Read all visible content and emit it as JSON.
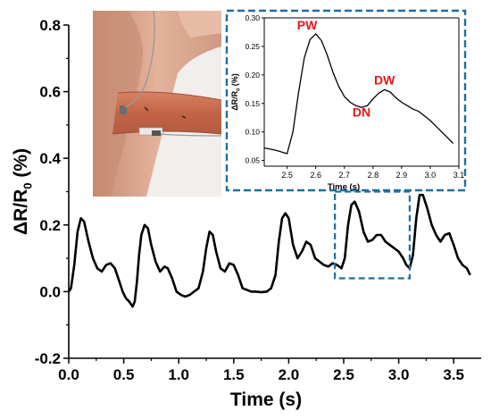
{
  "chart_data": [
    {
      "type": "line",
      "ylabel": "ΔR/R0 (%)",
      "xlabel": "Time (s)",
      "xlim": [
        0.0,
        3.75
      ],
      "ylim": [
        -0.2,
        0.8
      ],
      "xticks": [
        "0.0",
        "0.5",
        "1.0",
        "1.5",
        "2.0",
        "2.5",
        "3.0",
        "3.5"
      ],
      "yticks": [
        "-0.2",
        "0.0",
        "0.2",
        "0.4",
        "0.6",
        "0.8"
      ],
      "grid": false,
      "series": [
        {
          "color": "#000000",
          "x": [
            0.0,
            0.02,
            0.05,
            0.08,
            0.11,
            0.14,
            0.18,
            0.22,
            0.26,
            0.3,
            0.34,
            0.38,
            0.42,
            0.46,
            0.49,
            0.52,
            0.55,
            0.58,
            0.6,
            0.62,
            0.64,
            0.66,
            0.69,
            0.72,
            0.75,
            0.79,
            0.83,
            0.87,
            0.9,
            0.94,
            0.98,
            1.02,
            1.06,
            1.1,
            1.14,
            1.18,
            1.22,
            1.25,
            1.28,
            1.31,
            1.34,
            1.38,
            1.42,
            1.46,
            1.5,
            1.54,
            1.58,
            1.62,
            1.66,
            1.7,
            1.75,
            1.8,
            1.84,
            1.88,
            1.91,
            1.94,
            1.97,
            2.0,
            2.04,
            2.08,
            2.12,
            2.16,
            2.2,
            2.24,
            2.28,
            2.32,
            2.36,
            2.4,
            2.44,
            2.48,
            2.51,
            2.54,
            2.57,
            2.6,
            2.64,
            2.68,
            2.72,
            2.76,
            2.8,
            2.84,
            2.88,
            2.92,
            2.96,
            3.0,
            3.04,
            3.07,
            3.1,
            3.13,
            3.16,
            3.19,
            3.22,
            3.26,
            3.3,
            3.34,
            3.38,
            3.42,
            3.46,
            3.5,
            3.54,
            3.58,
            3.62,
            3.65
          ],
          "y": [
            0.0,
            0.01,
            0.08,
            0.18,
            0.22,
            0.21,
            0.15,
            0.1,
            0.07,
            0.06,
            0.08,
            0.085,
            0.07,
            0.03,
            0.0,
            -0.02,
            -0.03,
            -0.045,
            -0.03,
            0.03,
            0.11,
            0.17,
            0.2,
            0.19,
            0.14,
            0.09,
            0.06,
            0.075,
            0.07,
            0.04,
            0.0,
            -0.01,
            -0.015,
            -0.01,
            0.0,
            0.01,
            0.06,
            0.13,
            0.18,
            0.17,
            0.12,
            0.07,
            0.06,
            0.085,
            0.08,
            0.05,
            0.01,
            0.005,
            0.0,
            0.0,
            -0.002,
            0.0,
            0.01,
            0.05,
            0.15,
            0.22,
            0.235,
            0.22,
            0.14,
            0.1,
            0.12,
            0.15,
            0.14,
            0.1,
            0.09,
            0.08,
            0.075,
            0.085,
            0.08,
            0.07,
            0.1,
            0.2,
            0.26,
            0.27,
            0.24,
            0.18,
            0.15,
            0.155,
            0.17,
            0.17,
            0.15,
            0.14,
            0.13,
            0.12,
            0.1,
            0.08,
            0.07,
            0.11,
            0.22,
            0.29,
            0.29,
            0.25,
            0.2,
            0.17,
            0.15,
            0.17,
            0.175,
            0.14,
            0.1,
            0.08,
            0.07,
            0.05
          ]
        }
      ]
    },
    {
      "type": "line",
      "ylabel": "ΔR/R0 (%)",
      "xlabel": "Time (s)",
      "xlim": [
        2.42,
        3.1
      ],
      "ylim": [
        0.04,
        0.3
      ],
      "xticks": [
        "2.5",
        "2.6",
        "2.7",
        "2.8",
        "2.9",
        "3.0",
        "3.1"
      ],
      "yticks": [
        "0.05",
        "0.10",
        "0.15",
        "0.20",
        "0.25",
        "0.30"
      ],
      "annotations": [
        {
          "text": "PW",
          "x": 2.57,
          "y": 0.28
        },
        {
          "text": "DN",
          "x": 2.76,
          "y": 0.127
        },
        {
          "text": "DW",
          "x": 2.84,
          "y": 0.183
        }
      ],
      "annotation_color": "#e8151b",
      "frame_color": "#1e6fa0",
      "series": [
        {
          "color": "#000000",
          "x": [
            2.42,
            2.46,
            2.5,
            2.52,
            2.54,
            2.56,
            2.58,
            2.6,
            2.62,
            2.64,
            2.66,
            2.68,
            2.7,
            2.72,
            2.74,
            2.76,
            2.78,
            2.8,
            2.82,
            2.84,
            2.86,
            2.88,
            2.9,
            2.92,
            2.94,
            2.96,
            2.98,
            3.0,
            3.02,
            3.04,
            3.06,
            3.08
          ],
          "y": [
            0.072,
            0.068,
            0.062,
            0.1,
            0.17,
            0.23,
            0.262,
            0.272,
            0.26,
            0.235,
            0.205,
            0.18,
            0.162,
            0.152,
            0.146,
            0.143,
            0.146,
            0.158,
            0.168,
            0.174,
            0.17,
            0.16,
            0.152,
            0.146,
            0.14,
            0.136,
            0.128,
            0.12,
            0.11,
            0.1,
            0.09,
            0.08
          ]
        }
      ]
    }
  ],
  "photo_description_colors": {
    "skin": "#d9a38a",
    "tape": "#c96d4c",
    "background": "#f0ece9"
  }
}
